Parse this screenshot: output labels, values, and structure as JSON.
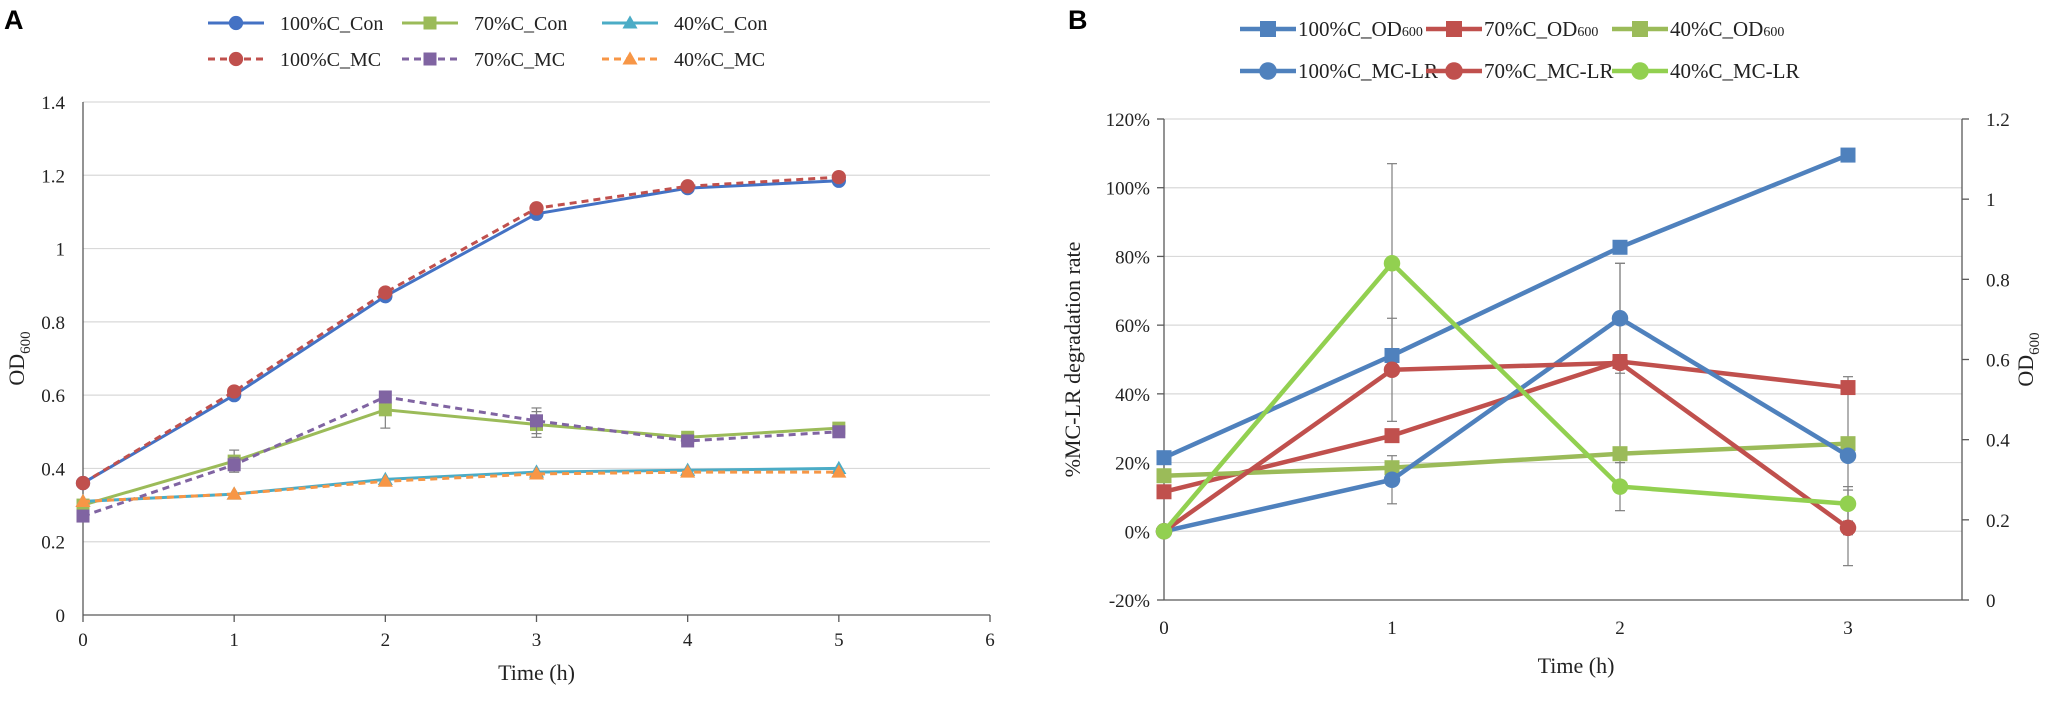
{
  "chart_data": [
    {
      "panel": "A",
      "type": "line",
      "title": "",
      "xlabel": "Time (h)",
      "ylabel": "OD",
      "ylabel_sub": "600",
      "x_ticks": [
        "0",
        "1",
        "2",
        "3",
        "4",
        "5",
        "6"
      ],
      "y_ticks": [
        "0",
        "0.2",
        "0.4",
        "0.6",
        "0.8",
        "1",
        "1.2",
        "1.4"
      ],
      "xlim": [
        0,
        6
      ],
      "ylim": [
        0,
        1.4
      ],
      "grid": true,
      "legend_position": "top",
      "series": [
        {
          "name": "100%C_Con",
          "color": "#4472C4",
          "marker": "circle",
          "dashed": false,
          "x": [
            0,
            1,
            2,
            3,
            4,
            5
          ],
          "values": [
            0.36,
            0.6,
            0.87,
            1.095,
            1.165,
            1.185
          ],
          "errors": [
            0,
            0,
            0,
            0,
            0,
            0
          ]
        },
        {
          "name": "70%C_Con",
          "color": "#9BBB59",
          "marker": "square",
          "dashed": false,
          "x": [
            0,
            1,
            2,
            3,
            4,
            5
          ],
          "values": [
            0.3,
            0.42,
            0.56,
            0.52,
            0.485,
            0.51
          ],
          "errors": [
            0,
            0.03,
            0.05,
            0.035,
            0.01,
            0.01
          ]
        },
        {
          "name": "40%C_Con",
          "color": "#4BACC6",
          "marker": "triangle",
          "dashed": false,
          "x": [
            0,
            1,
            2,
            3,
            4,
            5
          ],
          "values": [
            0.31,
            0.33,
            0.37,
            0.39,
            0.395,
            0.4
          ],
          "errors": [
            0,
            0,
            0,
            0,
            0,
            0
          ]
        },
        {
          "name": "100%C_MC",
          "color": "#C0504D",
          "marker": "circle",
          "dashed": true,
          "x": [
            0,
            1,
            2,
            3,
            4,
            5
          ],
          "values": [
            0.36,
            0.61,
            0.88,
            1.11,
            1.17,
            1.195
          ],
          "errors": [
            0,
            0,
            0,
            0,
            0,
            0
          ]
        },
        {
          "name": "70%C_MC",
          "color": "#8064A2",
          "marker": "square",
          "dashed": true,
          "x": [
            0,
            1,
            2,
            3,
            4,
            5
          ],
          "values": [
            0.27,
            0.41,
            0.595,
            0.53,
            0.475,
            0.5
          ],
          "errors": [
            0,
            0.02,
            0,
            0.035,
            0.01,
            0.01
          ]
        },
        {
          "name": "40%C_MC",
          "color": "#F79646",
          "marker": "triangle",
          "dashed": true,
          "x": [
            0,
            1,
            2,
            3,
            4,
            5
          ],
          "values": [
            0.31,
            0.33,
            0.365,
            0.385,
            0.39,
            0.39
          ],
          "errors": [
            0,
            0,
            0,
            0,
            0,
            0
          ]
        }
      ]
    },
    {
      "panel": "B",
      "type": "line",
      "title": "",
      "xlabel": "Time (h)",
      "ylabel": "%MC-LR degradation rate",
      "y2label": "OD",
      "y2label_sub": "600",
      "x_ticks": [
        "0",
        "1",
        "2",
        "3"
      ],
      "y_ticks": [
        "-20%",
        "0%",
        "20%",
        "40%",
        "60%",
        "80%",
        "100%",
        "120%"
      ],
      "y2_ticks": [
        "0",
        "0.2",
        "0.4",
        "0.6",
        "0.8",
        "1",
        "1.2"
      ],
      "xlim": [
        0,
        3.5
      ],
      "ylim": [
        -20,
        120
      ],
      "y2lim": [
        0,
        1.2
      ],
      "grid": true,
      "legend_position": "top",
      "series": [
        {
          "name": "100%C_OD",
          "name_sub": "600",
          "axis": "right",
          "color": "#4F81BD",
          "marker": "square",
          "x": [
            0,
            1,
            2,
            3
          ],
          "values": [
            0.355,
            0.61,
            0.88,
            1.11
          ],
          "errors": [
            0,
            0,
            0,
            0
          ]
        },
        {
          "name": "70%C_OD",
          "name_sub": "600",
          "axis": "right",
          "color": "#C0504D",
          "marker": "square",
          "x": [
            0,
            1,
            2,
            3
          ],
          "values": [
            0.27,
            0.41,
            0.595,
            0.53
          ],
          "errors": [
            0,
            0,
            0,
            0
          ]
        },
        {
          "name": "40%C_OD",
          "name_sub": "600",
          "axis": "right",
          "color": "#9BBB59",
          "marker": "square",
          "x": [
            0,
            1,
            2,
            3
          ],
          "values": [
            0.31,
            0.33,
            0.365,
            0.39
          ],
          "errors": [
            0,
            0,
            0,
            0
          ]
        },
        {
          "name": "100%C_MC-LR",
          "axis": "left",
          "color": "#4F81BD",
          "marker": "circle",
          "x": [
            0,
            1,
            2,
            3
          ],
          "values": [
            0,
            15,
            62,
            22
          ],
          "errors": [
            0,
            7,
            16,
            23
          ]
        },
        {
          "name": "70%C_MC-LR",
          "axis": "left",
          "color": "#C0504D",
          "marker": "circle",
          "x": [
            0,
            1,
            2,
            3
          ],
          "values": [
            0,
            47,
            49,
            1
          ],
          "errors": [
            0,
            15,
            29,
            11
          ]
        },
        {
          "name": "40%C_MC-LR",
          "axis": "left",
          "color": "#92D050",
          "marker": "circle",
          "x": [
            0,
            1,
            2,
            3
          ],
          "values": [
            0,
            78,
            13,
            8
          ],
          "errors": [
            0,
            29,
            7,
            5
          ]
        }
      ]
    }
  ]
}
